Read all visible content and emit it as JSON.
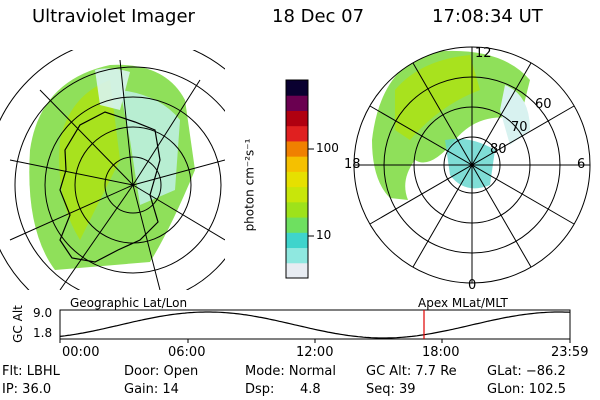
{
  "header": {
    "title": "Ultraviolet Imager",
    "date": "18 Dec 07",
    "time": "17:08:34 UT"
  },
  "colorbar": {
    "axis_label": "photon cm⁻²s⁻¹",
    "ticks": [
      "100",
      "10"
    ],
    "colors": [
      "#e8ecf2",
      "#8fe8e0",
      "#3fd4cc",
      "#6ee060",
      "#9ee21a",
      "#c8e60a",
      "#e6e000",
      "#f5c000",
      "#f08000",
      "#e02020",
      "#b00010",
      "#6a0050",
      "#0a0030"
    ]
  },
  "left_map": {
    "label": "Geographic Lat/Lon"
  },
  "right_map": {
    "label": "Apex  MLat/MLT",
    "mlt_labels": {
      "top": "12",
      "left": "18",
      "right": "6",
      "bottom": "0"
    },
    "lat_labels": [
      "60",
      "70",
      "80"
    ]
  },
  "altitude_plot": {
    "ylabel": "GC Alt",
    "yticks": [
      "9.0",
      "1.8"
    ],
    "xticks": [
      "00:00",
      "06:00",
      "12:00",
      "18:00",
      "23:59"
    ],
    "current_time_marker_color": "#e00000"
  },
  "footer": {
    "flt": "Flt: LBHL",
    "door": "Door: Open",
    "mode": "Mode: Normal",
    "gc_alt": "GC Alt: 7.7 Re",
    "glat": "GLat: −86.2",
    "ip": "IP: 36.0",
    "gain": "Gain: 14",
    "dsp_label": "Dsp:",
    "dsp_value": "4.8",
    "seq": "Seq: 39",
    "glon": "GLon: 102.5"
  }
}
